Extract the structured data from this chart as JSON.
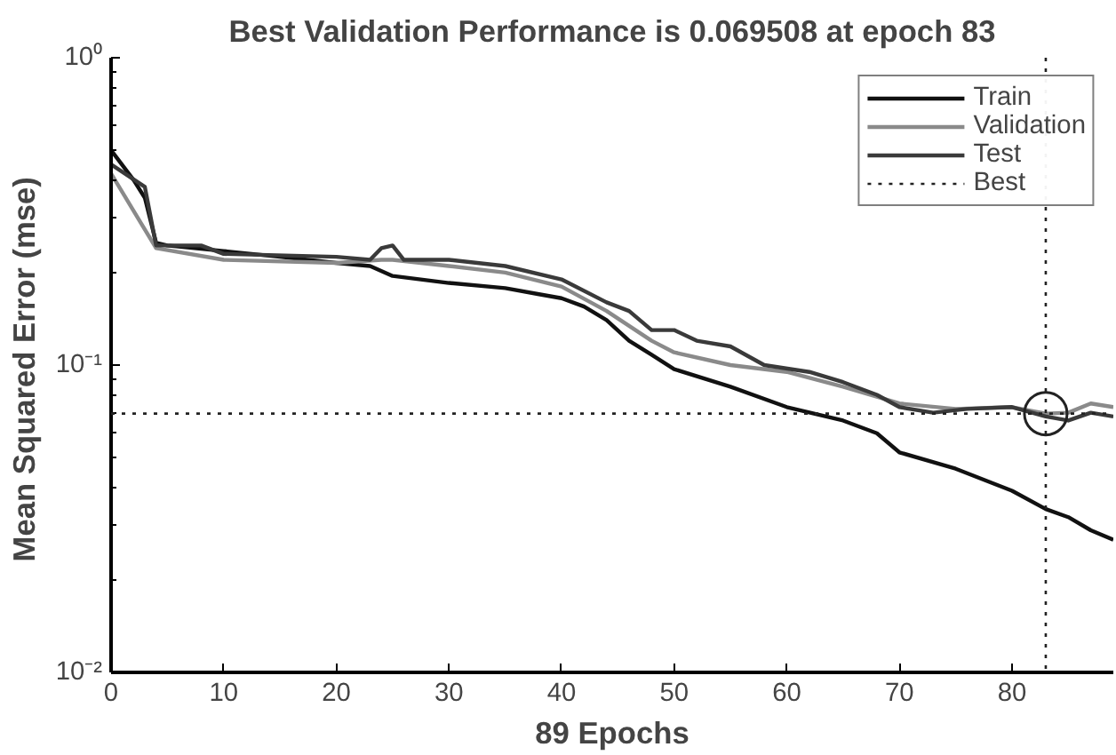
{
  "chart_data": {
    "type": "line",
    "title": "Best Validation Performance is 0.069508 at epoch 83",
    "xlabel": "89 Epochs",
    "ylabel": "Mean Squared Error  (mse)",
    "xlim": [
      0,
      89
    ],
    "xticks": [
      0,
      10,
      20,
      30,
      40,
      50,
      60,
      70,
      80
    ],
    "ylim": [
      0.01,
      1
    ],
    "yticks": [
      {
        "value": 1,
        "label": "10⁰"
      },
      {
        "value": 0.1,
        "label": "10⁻¹"
      },
      {
        "value": 0.01,
        "label": "10⁻²"
      }
    ],
    "log": true,
    "grid": false,
    "legend": "top right",
    "marker": "none",
    "line_style": "solid",
    "series": [
      {
        "name": "Train",
        "color": "#111111",
        "x": [
          0,
          2,
          3,
          4,
          5,
          10,
          15,
          20,
          23,
          25,
          30,
          35,
          38,
          40,
          42,
          44,
          46,
          48,
          50,
          55,
          60,
          65,
          68,
          70,
          75,
          80,
          83,
          85,
          87,
          89
        ],
        "values": [
          0.5,
          0.4,
          0.35,
          0.25,
          0.245,
          0.235,
          0.225,
          0.215,
          0.21,
          0.195,
          0.185,
          0.178,
          0.17,
          0.165,
          0.155,
          0.14,
          0.12,
          0.108,
          0.097,
          0.085,
          0.073,
          0.066,
          0.06,
          0.052,
          0.046,
          0.039,
          0.034,
          0.032,
          0.029,
          0.027
        ]
      },
      {
        "name": "Validation",
        "color": "#8a8a8a",
        "x": [
          0,
          4,
          10,
          20,
          24,
          25,
          30,
          35,
          40,
          44,
          48,
          50,
          55,
          60,
          65,
          70,
          75,
          80,
          83,
          85,
          87,
          89
        ],
        "values": [
          0.42,
          0.24,
          0.22,
          0.215,
          0.22,
          0.22,
          0.21,
          0.2,
          0.18,
          0.15,
          0.12,
          0.11,
          0.1,
          0.095,
          0.085,
          0.075,
          0.072,
          0.073,
          0.0695,
          0.07,
          0.075,
          0.073
        ]
      },
      {
        "name": "Test",
        "color": "#3a3a3a",
        "x": [
          0,
          3,
          4,
          8,
          10,
          20,
          23,
          24,
          25,
          26,
          30,
          35,
          40,
          44,
          46,
          48,
          50,
          52,
          55,
          58,
          62,
          65,
          68,
          70,
          73,
          76,
          80,
          83,
          85,
          87,
          89
        ],
        "values": [
          0.45,
          0.38,
          0.245,
          0.245,
          0.23,
          0.225,
          0.22,
          0.24,
          0.245,
          0.22,
          0.22,
          0.21,
          0.19,
          0.16,
          0.15,
          0.13,
          0.13,
          0.12,
          0.115,
          0.1,
          0.095,
          0.088,
          0.08,
          0.073,
          0.07,
          0.072,
          0.073,
          0.068,
          0.066,
          0.07,
          0.068
        ]
      },
      {
        "type": "scatter",
        "marker": "circle",
        "color": "#222222",
        "x": [
          83
        ],
        "values": [
          0.069508
        ]
      }
    ],
    "ref_lines": [
      {
        "axis": "x",
        "value": 83,
        "label": "Best",
        "color": "#222222",
        "line_style": "dotted"
      },
      {
        "axis": "y",
        "value": 0.069508,
        "color": "#222222",
        "line_style": "dotted"
      }
    ]
  }
}
